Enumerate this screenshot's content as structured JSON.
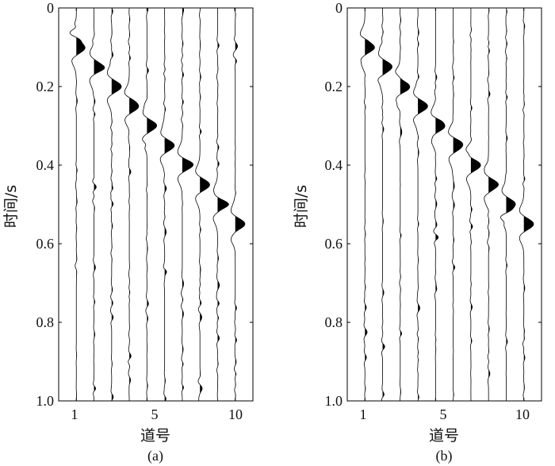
{
  "chart_data": [
    {
      "type": "seismic-wiggle",
      "caption": "(a)",
      "xlabel": "道号",
      "ylabel": "时间/s",
      "ylim": [
        0,
        1.0
      ],
      "xlim": [
        0,
        11
      ],
      "y_inverted": true,
      "yticks": [
        "0",
        "0.2",
        "0.4",
        "0.6",
        "0.8",
        "1.0"
      ],
      "xticks": [
        "1",
        "5",
        "10"
      ],
      "fill": "positive",
      "traces": [
        {
          "trace": 1,
          "main_event_time_s": 0.1
        },
        {
          "trace": 2,
          "main_event_time_s": 0.15
        },
        {
          "trace": 3,
          "main_event_time_s": 0.2
        },
        {
          "trace": 4,
          "main_event_time_s": 0.25
        },
        {
          "trace": 5,
          "main_event_time_s": 0.3
        },
        {
          "trace": 6,
          "main_event_time_s": 0.35
        },
        {
          "trace": 7,
          "main_event_time_s": 0.4
        },
        {
          "trace": 8,
          "main_event_time_s": 0.45
        },
        {
          "trace": 9,
          "main_event_time_s": 0.5
        },
        {
          "trace": 10,
          "main_event_time_s": 0.55
        }
      ],
      "noise": "present"
    },
    {
      "type": "seismic-wiggle",
      "caption": "(b)",
      "xlabel": "道号",
      "ylabel": "时间/s",
      "ylim": [
        0,
        1.0
      ],
      "xlim": [
        0,
        11
      ],
      "y_inverted": true,
      "yticks": [
        "0",
        "0.2",
        "0.4",
        "0.6",
        "0.8",
        "1.0"
      ],
      "xticks": [
        "1",
        "5",
        "10"
      ],
      "fill": "positive",
      "traces": [
        {
          "trace": 1,
          "main_event_time_s": 0.1
        },
        {
          "trace": 2,
          "main_event_time_s": 0.15
        },
        {
          "trace": 3,
          "main_event_time_s": 0.2
        },
        {
          "trace": 4,
          "main_event_time_s": 0.25
        },
        {
          "trace": 5,
          "main_event_time_s": 0.3
        },
        {
          "trace": 6,
          "main_event_time_s": 0.35
        },
        {
          "trace": 7,
          "main_event_time_s": 0.4
        },
        {
          "trace": 8,
          "main_event_time_s": 0.45
        },
        {
          "trace": 9,
          "main_event_time_s": 0.5
        },
        {
          "trace": 10,
          "main_event_time_s": 0.55
        }
      ],
      "noise": "present"
    }
  ]
}
